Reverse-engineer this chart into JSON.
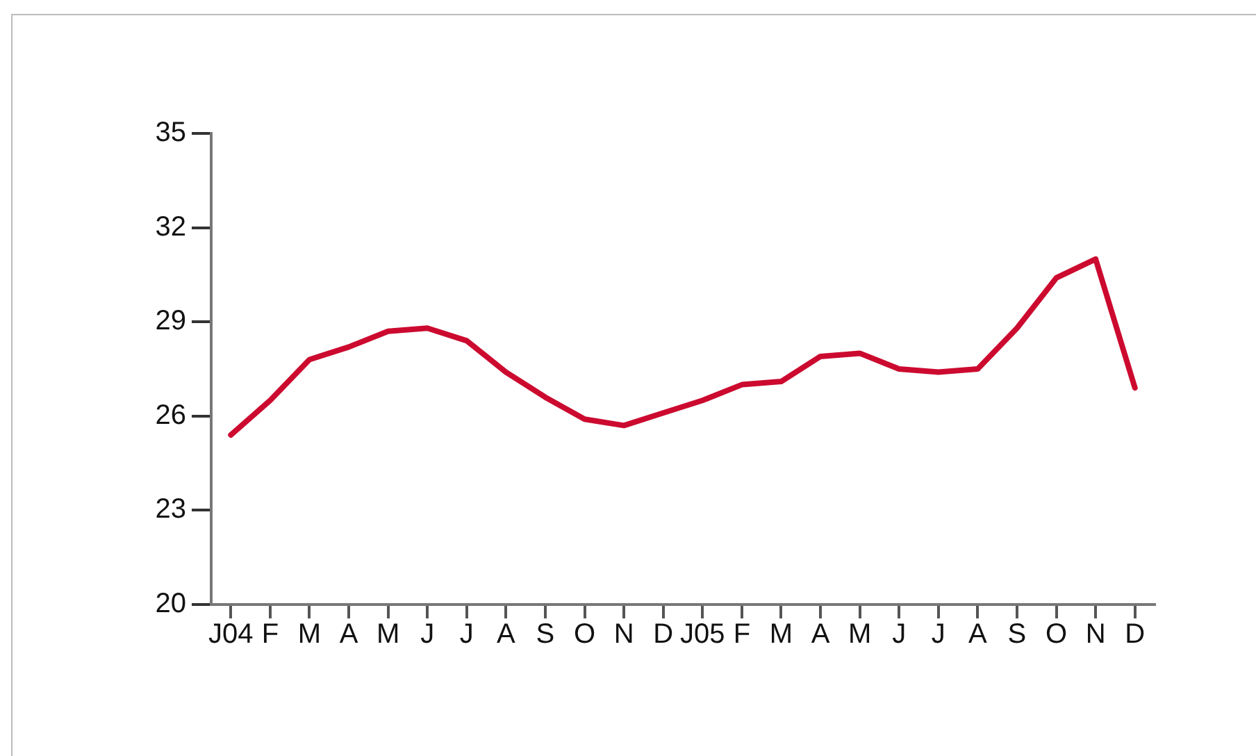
{
  "chart_data": {
    "type": "line",
    "categories": [
      "J04",
      "F",
      "M",
      "A",
      "M",
      "J",
      "J",
      "A",
      "S",
      "O",
      "N",
      "D",
      "J05",
      "F",
      "M",
      "A",
      "M",
      "J",
      "J",
      "A",
      "S",
      "O",
      "N",
      "D"
    ],
    "series": [
      {
        "color": "#cc0a2f",
        "values": [
          25.4,
          26.5,
          27.8,
          28.2,
          28.7,
          28.8,
          28.4,
          27.4,
          26.6,
          25.9,
          25.7,
          26.1,
          26.5,
          27.0,
          27.1,
          27.9,
          28.0,
          27.5,
          27.4,
          27.5,
          28.8,
          30.4,
          31.0,
          26.9
        ]
      }
    ],
    "ylim": [
      20,
      35
    ],
    "yticks": [
      20,
      23,
      26,
      29,
      32,
      35
    ],
    "grid": false,
    "legend": false,
    "marker": "none",
    "line_style": "solid"
  }
}
